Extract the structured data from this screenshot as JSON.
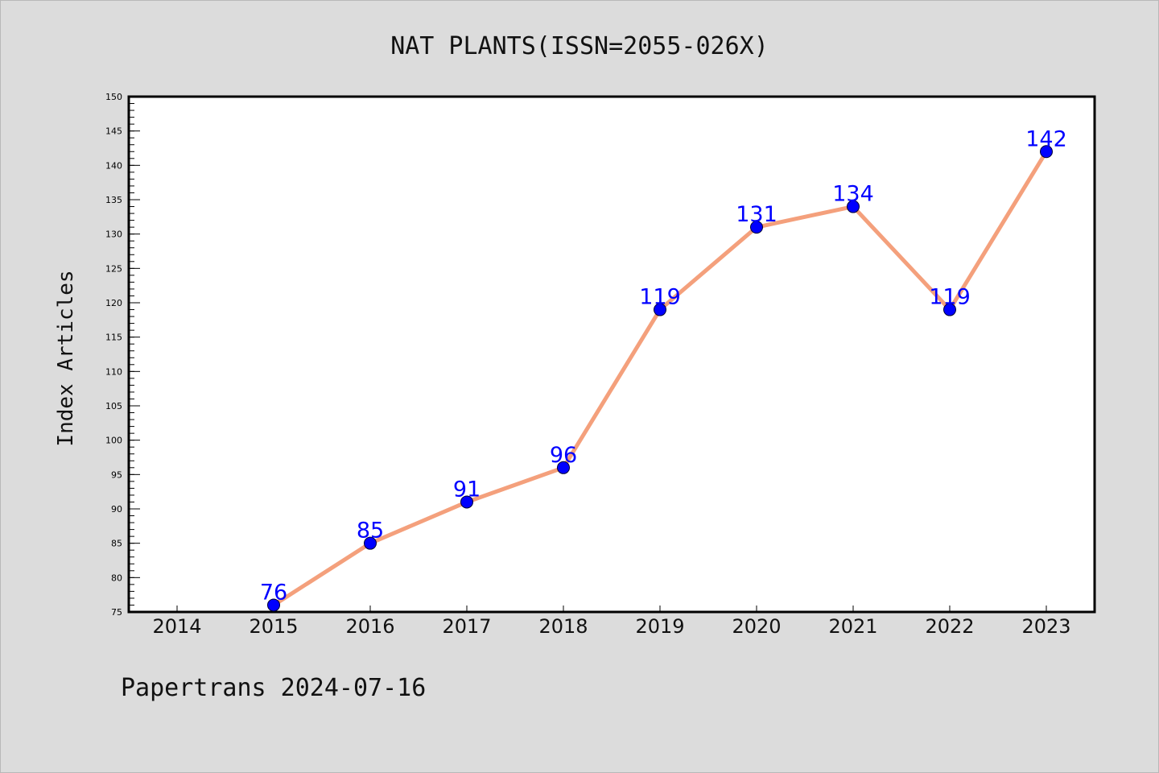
{
  "chart_data": {
    "type": "line",
    "title": "NAT PLANTS(ISSN=2055-026X)",
    "ylabel": "Index Articles",
    "xlabel": "",
    "categories": [
      "2014",
      "2015",
      "2016",
      "2017",
      "2018",
      "2019",
      "2020",
      "2021",
      "2022",
      "2023"
    ],
    "series": [
      {
        "x": [
          "2015",
          "2016",
          "2017",
          "2018",
          "2019",
          "2020",
          "2021",
          "2022",
          "2023"
        ],
        "values": [
          76,
          85,
          91,
          96,
          119,
          131,
          134,
          119,
          142
        ],
        "data_labels": [
          "76",
          "85",
          "91",
          "96",
          "119",
          "131",
          "134",
          "119",
          "142"
        ]
      }
    ],
    "ylim": [
      75,
      150
    ],
    "yticks": [
      "75",
      "80",
      "85",
      "90",
      "95",
      "100",
      "105",
      "110",
      "115",
      "120",
      "125",
      "130",
      "135",
      "140",
      "145",
      "150"
    ],
    "grid": false,
    "legend": "none",
    "colors": {
      "background": "#dcdcdc",
      "plot_background": "#ffffff",
      "line": "#f4a07c",
      "marker": "#0000ff",
      "label": "#0000ff"
    }
  },
  "footer": "Papertrans 2024-07-16"
}
